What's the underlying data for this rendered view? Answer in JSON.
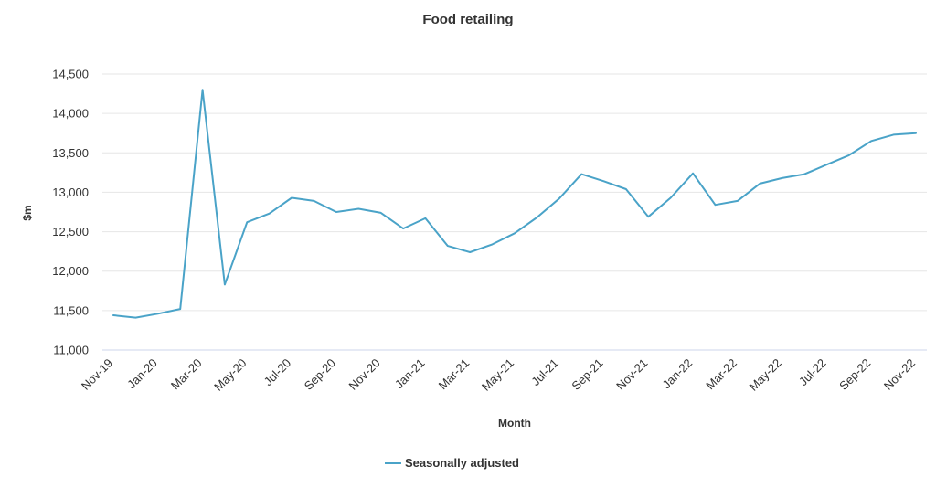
{
  "chart_data": {
    "type": "line",
    "title": "Food retailing",
    "xlabel": "Month",
    "ylabel": "$m",
    "ylim": [
      11000,
      14500
    ],
    "yticks": [
      11000,
      11500,
      12000,
      12500,
      13000,
      13500,
      14000,
      14500
    ],
    "ytick_labels": [
      "11,000",
      "11,500",
      "12,000",
      "12,500",
      "13,000",
      "13,500",
      "14,000",
      "14,500"
    ],
    "grid": true,
    "legend_position": "bottom-center",
    "x": [
      "Nov-19",
      "Dec-19",
      "Jan-20",
      "Feb-20",
      "Mar-20",
      "Apr-20",
      "May-20",
      "Jun-20",
      "Jul-20",
      "Aug-20",
      "Sep-20",
      "Oct-20",
      "Nov-20",
      "Dec-20",
      "Jan-21",
      "Feb-21",
      "Mar-21",
      "Apr-21",
      "May-21",
      "Jun-21",
      "Jul-21",
      "Aug-21",
      "Sep-21",
      "Oct-21",
      "Nov-21",
      "Dec-21",
      "Jan-22",
      "Feb-22",
      "Mar-22",
      "Apr-22",
      "May-22",
      "Jun-22",
      "Jul-22",
      "Aug-22",
      "Sep-22",
      "Oct-22",
      "Nov-22"
    ],
    "xtick_labels": [
      "Nov-19",
      "Jan-20",
      "Mar-20",
      "May-20",
      "Jul-20",
      "Sep-20",
      "Nov-20",
      "Jan-21",
      "Mar-21",
      "May-21",
      "Jul-21",
      "Sep-21",
      "Nov-21",
      "Jan-22",
      "Mar-22",
      "May-22",
      "Jul-22",
      "Sep-22",
      "Nov-22"
    ],
    "series": [
      {
        "name": "Seasonally adjusted",
        "color": "#4aa3c8",
        "values": [
          11440,
          11410,
          11460,
          11520,
          14300,
          11830,
          12620,
          12730,
          12930,
          12890,
          12750,
          12790,
          12740,
          12540,
          12670,
          12320,
          12240,
          12340,
          12480,
          12680,
          12920,
          13230,
          13140,
          13040,
          12690,
          12930,
          13240,
          12840,
          12890,
          13110,
          13180,
          13230,
          13350,
          13470,
          13650,
          13730,
          13750
        ]
      }
    ]
  }
}
